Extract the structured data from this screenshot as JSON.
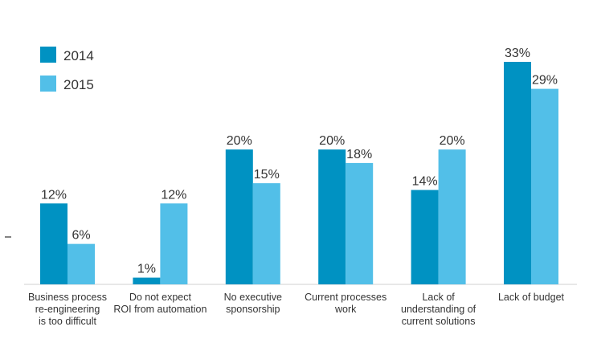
{
  "chart_data": {
    "type": "bar",
    "title": "",
    "xlabel": "",
    "ylabel": "",
    "ylim": [
      0,
      33
    ],
    "grid": false,
    "legend_position": "top-left",
    "categories": [
      [
        "Business process",
        "re-engineering",
        "is too difficult"
      ],
      [
        "Do not expect",
        "ROI from automation"
      ],
      [
        "No executive",
        "sponsorship"
      ],
      [
        "Current processes",
        "work"
      ],
      [
        "Lack of",
        "understanding of",
        "current solutions"
      ],
      [
        "Lack of budget"
      ]
    ],
    "series": [
      {
        "name": "2014",
        "color": "#0092c2",
        "values": [
          12,
          1,
          20,
          20,
          14,
          33
        ],
        "labels": [
          "12%",
          "1%",
          "20%",
          "20%",
          "14%",
          "33%"
        ]
      },
      {
        "name": "2015",
        "color": "#52bfe8",
        "values": [
          6,
          12,
          15,
          18,
          20,
          29
        ],
        "labels": [
          "6%",
          "12%",
          "15%",
          "18%",
          "20%",
          "29%"
        ]
      }
    ]
  }
}
